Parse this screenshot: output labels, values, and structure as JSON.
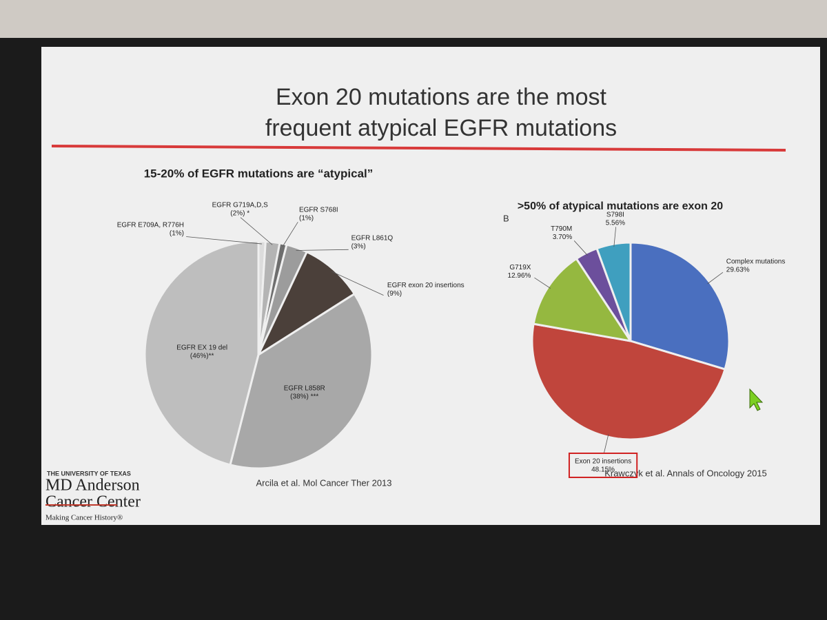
{
  "slide": {
    "title_lines": [
      "Exon 20 mutations are the most",
      "frequent atypical EGFR mutations"
    ],
    "panel_letter": "B",
    "citations": [
      "Arcila et al. Mol Cancer Ther 2013",
      "Krawczyk et al. Annals of Oncology 2015"
    ],
    "logo": [
      "THE UNIVERSITY OF TEXAS",
      "MD Anderson",
      "Cancer Center",
      "Making Cancer History®"
    ]
  },
  "chart_data": [
    {
      "type": "pie",
      "title": "15-20% of EGFR mutations are “atypical”",
      "categories": [
        "EGFR E709A, R776H",
        "EGFR G719A,D,S",
        "EGFR S768I",
        "EGFR L861Q",
        "EGFR exon 20 insertions",
        "EGFR L858R",
        "EGFR EX 19 del"
      ],
      "values": [
        1,
        2,
        1,
        3,
        9,
        38,
        46
      ],
      "value_labels": [
        "(1%)",
        "(2%) *",
        "(1%)",
        "(3%)",
        "(9%)",
        "(38%) ***",
        "(46%)**"
      ],
      "colors": [
        "#dcdcdc",
        "#b4b4b4",
        "#6e6e6e",
        "#9c9c9c",
        "#4b403a",
        "#a8a8a8",
        "#bebebe"
      ]
    },
    {
      "type": "pie",
      "title": ">50% of atypical mutations are exon 20",
      "categories": [
        "Complex mutations",
        "Exon 20 insertions",
        "G719X",
        "T790M",
        "S798I"
      ],
      "values": [
        29.63,
        48.15,
        12.96,
        3.7,
        5.56
      ],
      "value_labels": [
        "29.63%",
        "48.15%",
        "12.96%",
        "3.70%",
        "5.56%"
      ],
      "colors": [
        "#4a6fbf",
        "#c0453c",
        "#95b840",
        "#6c4f9c",
        "#3f9fbf"
      ]
    }
  ]
}
